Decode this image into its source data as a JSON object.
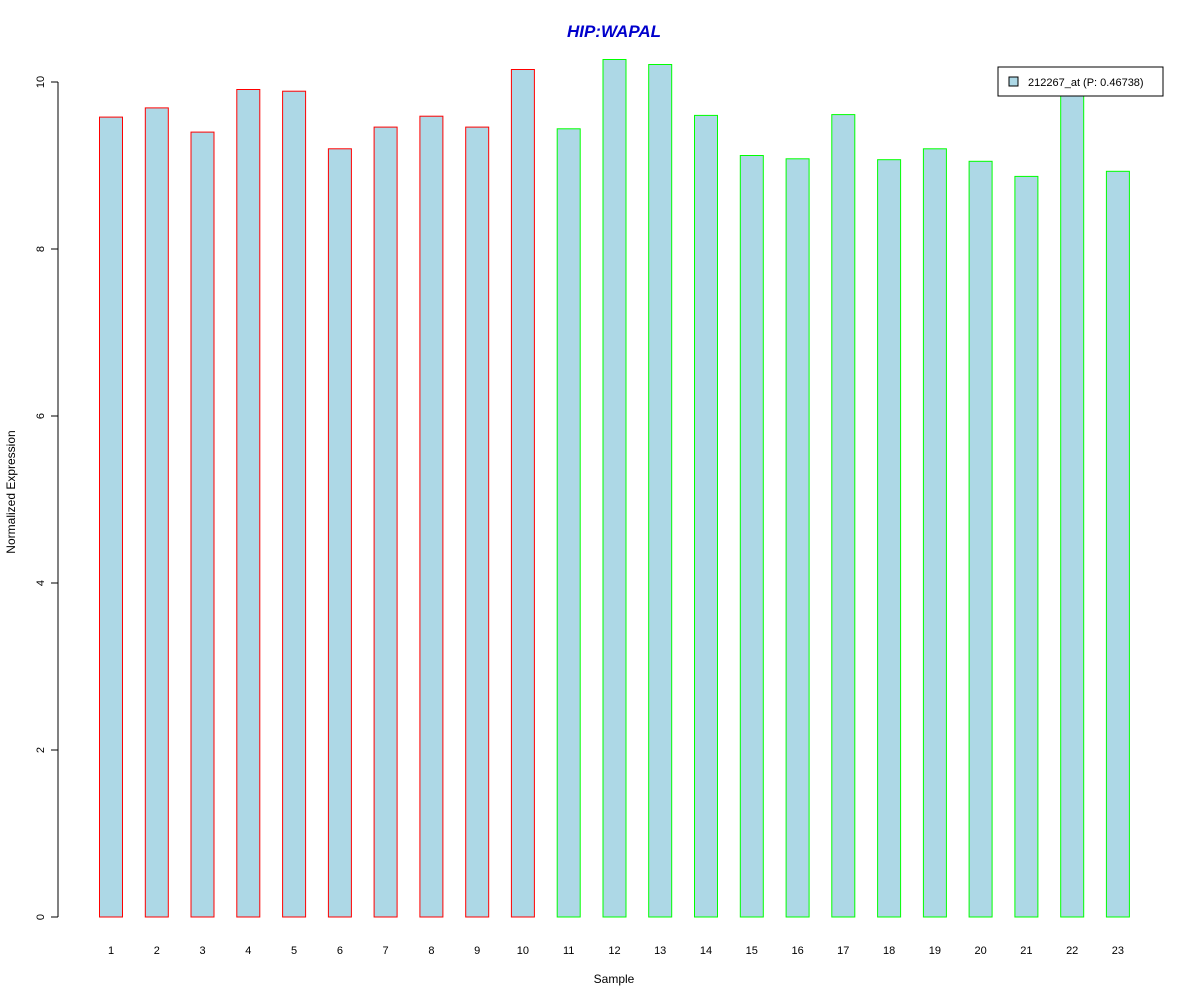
{
  "colors": {
    "title": "#0000CC",
    "bar_fill": "#ADD8E6",
    "group1_border": "#FF0000",
    "group2_border": "#00FF00",
    "axis": "#000000"
  },
  "chart_data": {
    "type": "bar",
    "title": "HIP:WAPAL",
    "xlabel": "Sample",
    "ylabel": "Normalized Expression",
    "ylim": [
      0,
      10.2
    ],
    "yticks": [
      0,
      2,
      4,
      6,
      8,
      10
    ],
    "categories": [
      "1",
      "2",
      "3",
      "4",
      "5",
      "6",
      "7",
      "8",
      "9",
      "10",
      "11",
      "12",
      "13",
      "14",
      "15",
      "16",
      "17",
      "18",
      "19",
      "20",
      "21",
      "22",
      "23"
    ],
    "series": [
      {
        "name": "212267_at (P: 0.46738)",
        "values": [
          9.58,
          9.69,
          9.4,
          9.91,
          9.89,
          9.2,
          9.46,
          9.59,
          9.46,
          10.15,
          9.44,
          10.27,
          10.21,
          9.6,
          9.12,
          9.08,
          9.61,
          9.07,
          9.2,
          9.05,
          8.87,
          9.87,
          8.93
        ]
      }
    ],
    "border_groups": [
      "group1",
      "group1",
      "group1",
      "group1",
      "group1",
      "group1",
      "group1",
      "group1",
      "group1",
      "group1",
      "group2",
      "group2",
      "group2",
      "group2",
      "group2",
      "group2",
      "group2",
      "group2",
      "group2",
      "group2",
      "group2",
      "group2",
      "group2"
    ],
    "grid": false,
    "legend_position": "top-right"
  }
}
